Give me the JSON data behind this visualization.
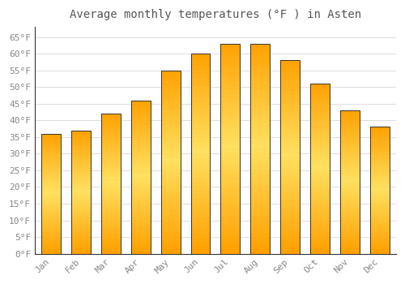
{
  "title": "Average monthly temperatures (°F ) in Asten",
  "months": [
    "Jan",
    "Feb",
    "Mar",
    "Apr",
    "May",
    "Jun",
    "Jul",
    "Aug",
    "Sep",
    "Oct",
    "Nov",
    "Dec"
  ],
  "values": [
    36,
    37,
    42,
    46,
    55,
    60,
    63,
    63,
    58,
    51,
    43,
    38
  ],
  "bar_color_top": "#FFCC44",
  "bar_color_bottom": "#FFA500",
  "bar_color_mid": "#FFD966",
  "bar_edge_color": "#333333",
  "background_color": "#FFFFFF",
  "plot_bg_color": "#FFFFFF",
  "grid_color": "#DDDDDD",
  "text_color": "#888888",
  "title_color": "#555555",
  "ylim": [
    0,
    68
  ],
  "yticks": [
    0,
    5,
    10,
    15,
    20,
    25,
    30,
    35,
    40,
    45,
    50,
    55,
    60,
    65
  ],
  "ytick_labels": [
    "0°F",
    "5°F",
    "10°F",
    "15°F",
    "20°F",
    "25°F",
    "30°F",
    "35°F",
    "40°F",
    "45°F",
    "50°F",
    "55°F",
    "60°F",
    "65°F"
  ],
  "title_fontsize": 10,
  "tick_fontsize": 8,
  "bar_width": 0.65
}
